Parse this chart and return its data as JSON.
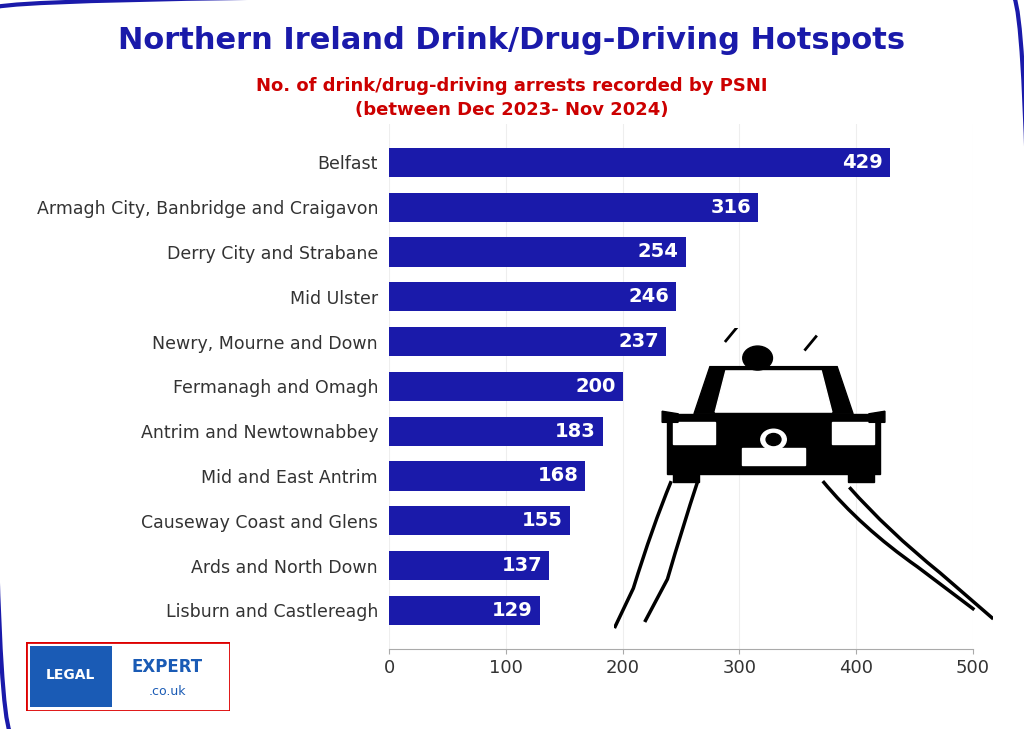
{
  "title": "Northern Ireland Drink/Drug-Driving Hotspots",
  "subtitle_line1": "No. of drink/drug-driving arrests recorded by PSNI",
  "subtitle_line2": "(between Dec 2023- Nov 2024)",
  "categories": [
    "Belfast",
    "Armagh City, Banbridge and Craigavon",
    "Derry City and Strabane",
    "Mid Ulster",
    "Newry, Mourne and Down",
    "Fermanagh and Omagh",
    "Antrim and Newtownabbey",
    "Mid and East Antrim",
    "Causeway Coast and Glens",
    "Ards and North Down",
    "Lisburn and Castlereagh"
  ],
  "values": [
    429,
    316,
    254,
    246,
    237,
    200,
    183,
    168,
    155,
    137,
    129
  ],
  "bar_color": "#1a1aaa",
  "label_color": "#ffffff",
  "title_color": "#1a1aaa",
  "subtitle_color": "#cc0000",
  "background_color": "#ffffff",
  "border_color": "#1a1aaa",
  "tick_color": "#333333",
  "xlim": [
    0,
    500
  ],
  "xticks": [
    0,
    100,
    200,
    300,
    400,
    500
  ],
  "title_fontsize": 22,
  "subtitle_fontsize": 13,
  "label_fontsize": 14,
  "tick_fontsize": 13,
  "category_fontsize": 12.5
}
